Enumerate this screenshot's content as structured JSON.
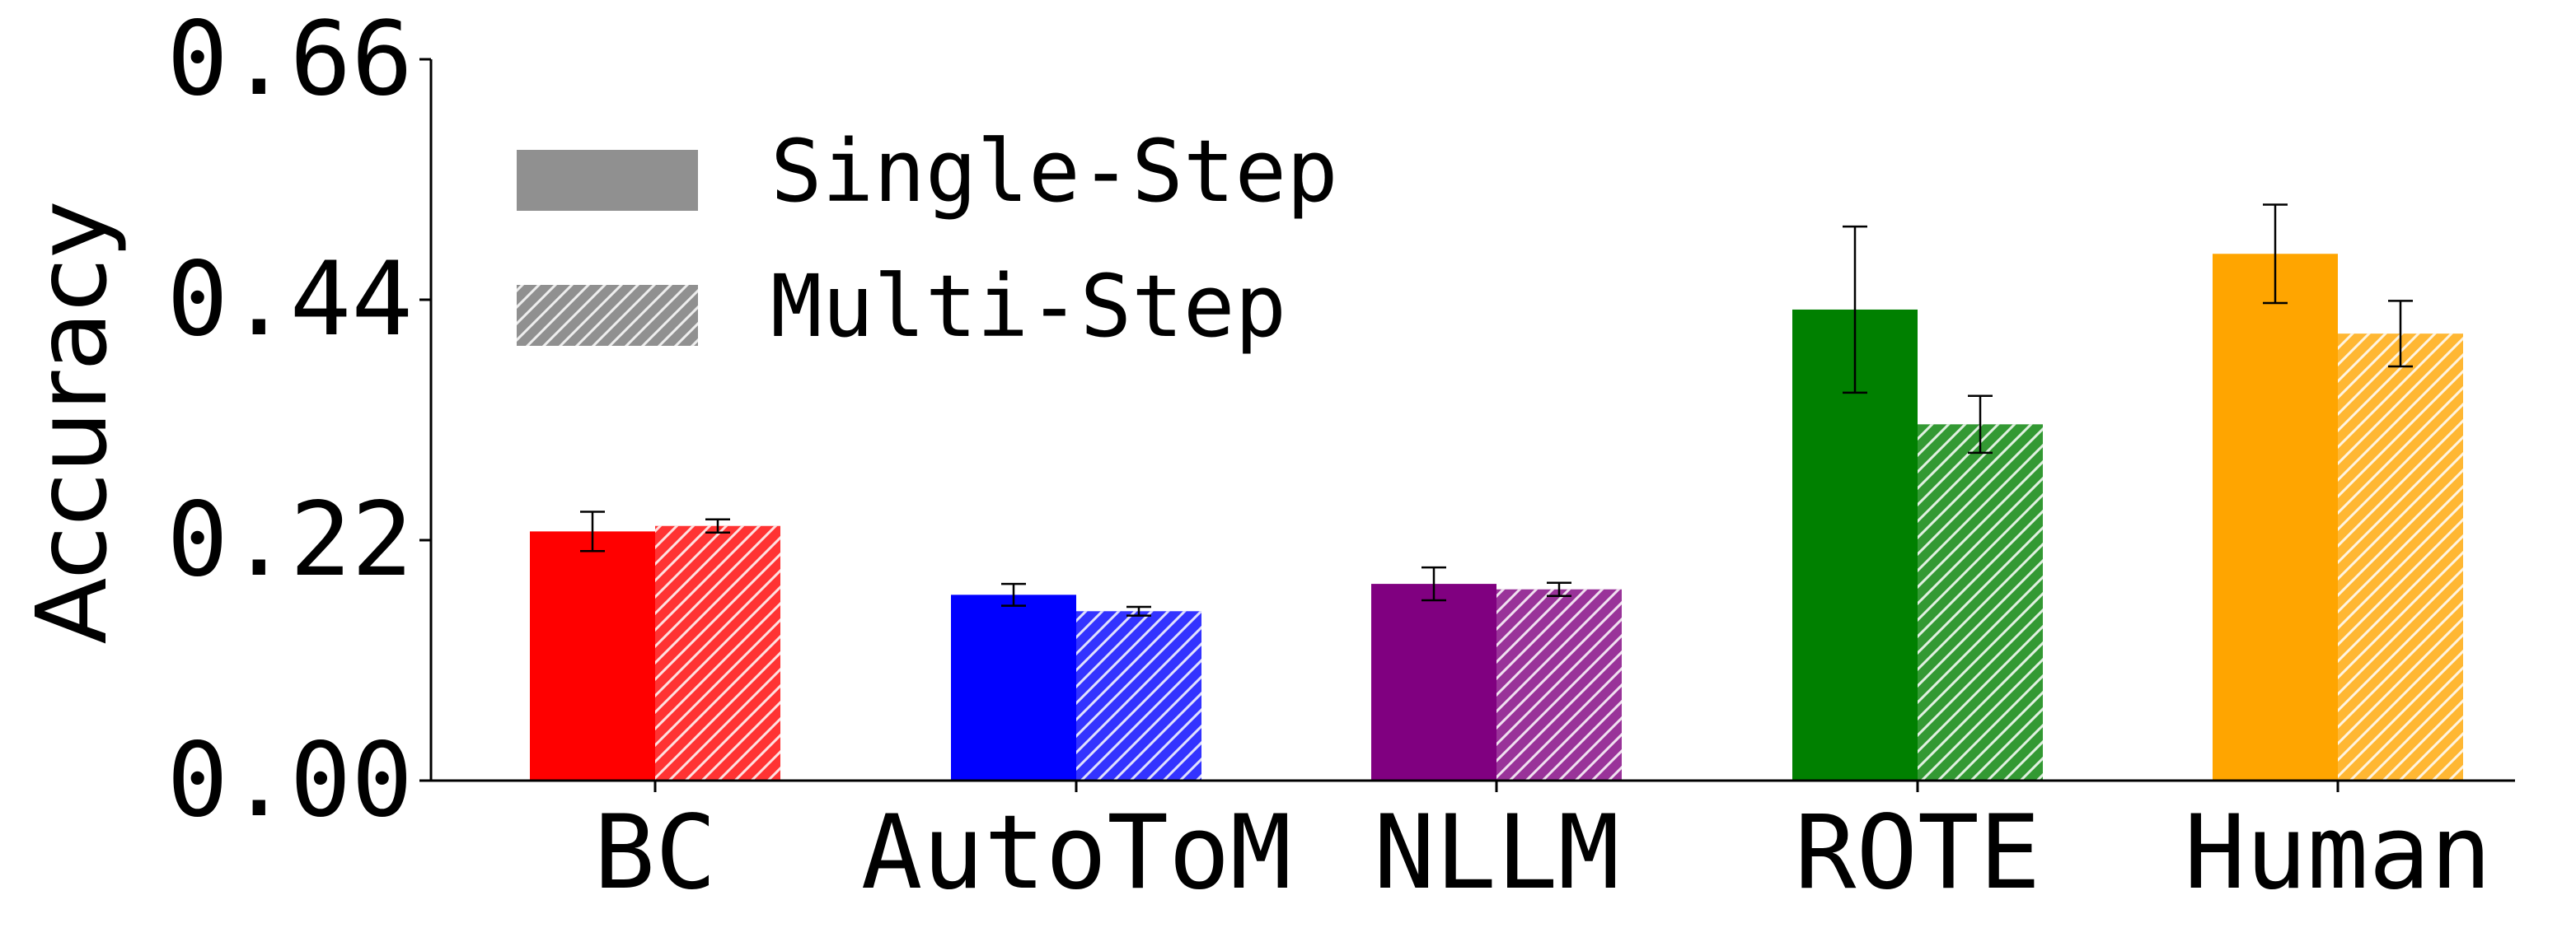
{
  "chart_data": {
    "type": "bar",
    "title": "",
    "xlabel": "",
    "ylabel": "Accuracy",
    "ylim": [
      0.0,
      0.66
    ],
    "yticks": [
      "0.00",
      "0.22",
      "0.44",
      "0.66"
    ],
    "grid": false,
    "legend_position": "top-left",
    "categories": [
      "BC",
      "AutoToM",
      "NLLM",
      "ROTE",
      "Human"
    ],
    "category_colors": [
      "#ff0000",
      "#0000ff",
      "#800080",
      "#008000",
      "#ffa500"
    ],
    "series": [
      {
        "name": "Single-Step",
        "pattern": "solid",
        "values": [
          0.228,
          0.17,
          0.18,
          0.431,
          0.482
        ],
        "error": [
          0.018,
          0.01,
          0.015,
          0.076,
          0.045
        ]
      },
      {
        "name": "Multi-Step",
        "pattern": "hatched",
        "values": [
          0.233,
          0.155,
          0.175,
          0.326,
          0.409
        ],
        "error": [
          0.006,
          0.004,
          0.006,
          0.026,
          0.03
        ]
      }
    ],
    "legend_swatch_color": "#909090"
  }
}
